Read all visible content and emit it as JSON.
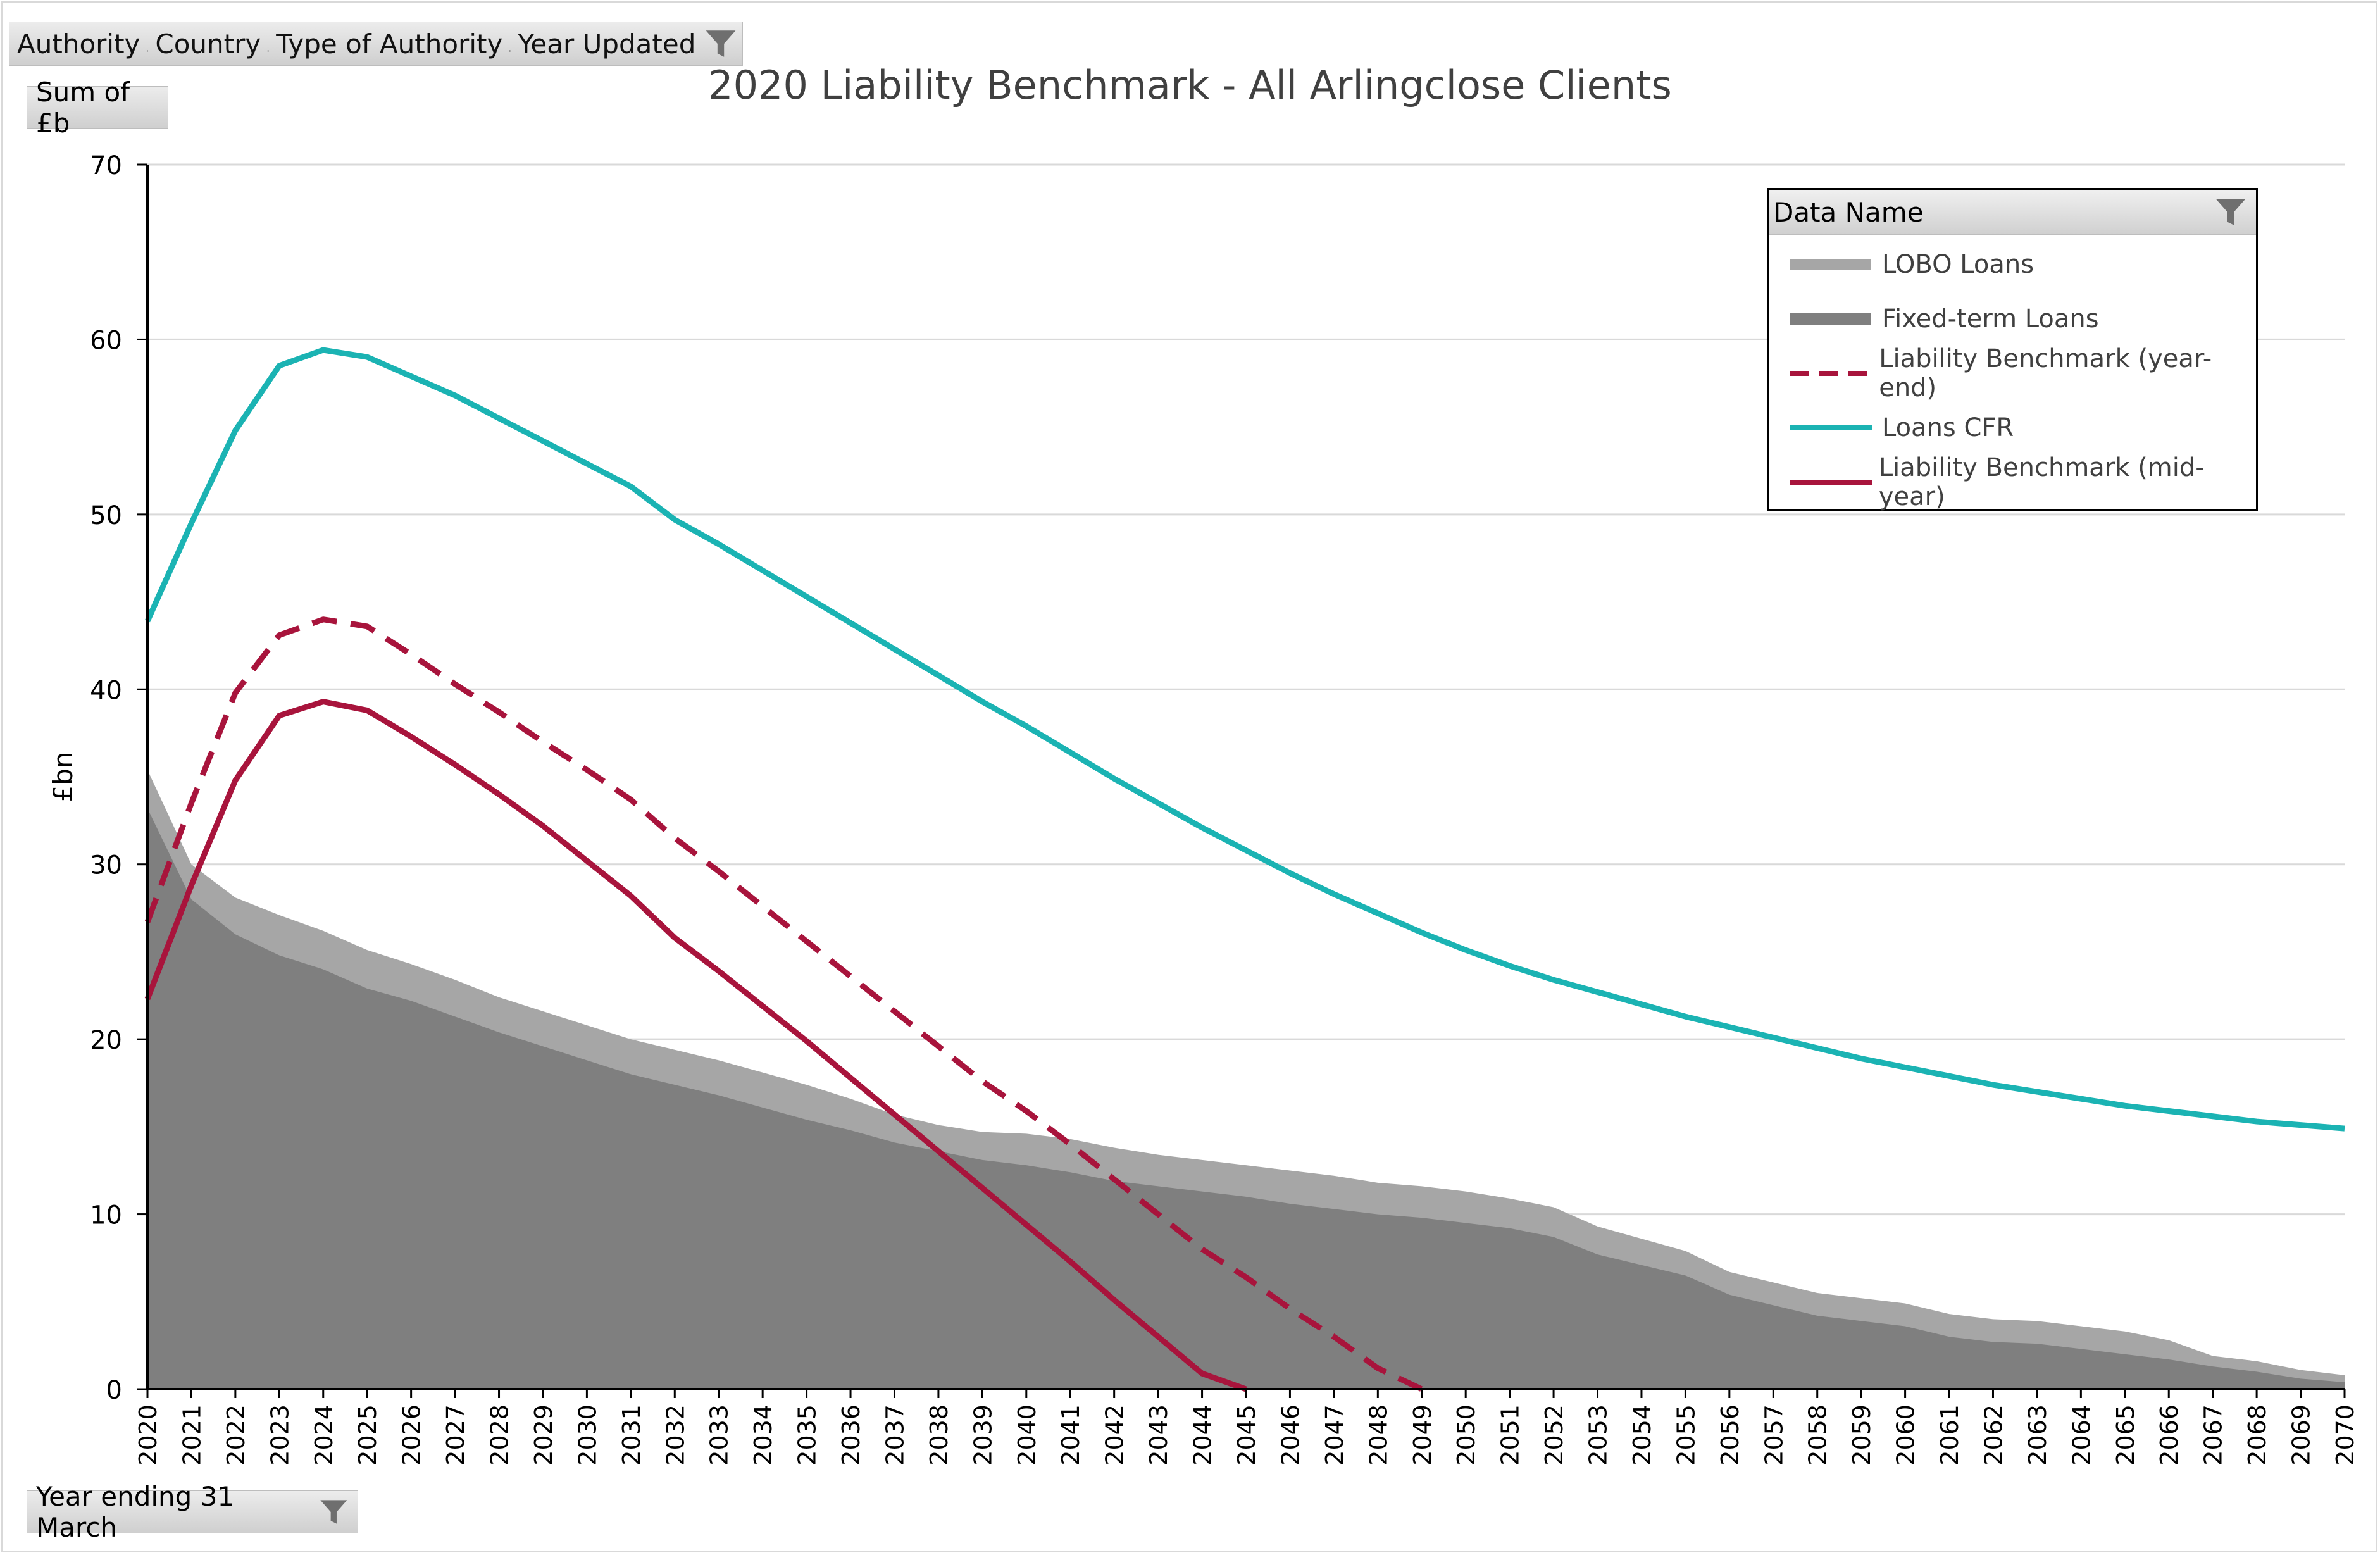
{
  "filters": {
    "items": [
      "Authority",
      "Country",
      "Type of Authority",
      "Year Updated"
    ],
    "sum_field": "Sum of £b",
    "axis_field": "Year ending 31 March",
    "legend_field": "Data Name"
  },
  "colors": {
    "lobo": "#a6a6a6",
    "fixed": "#7f7f7f",
    "cfr": "#1bb3b3",
    "benchmark": "#a8143c",
    "grid": "#d9d9d9"
  },
  "icons": {
    "filter": "funnel-icon"
  },
  "chart_data": {
    "type": "area",
    "title": "2020 Liability Benchmark - All Arlingclose Clients",
    "ylabel": "£bn",
    "xlabel": "",
    "ylim": [
      0,
      70
    ],
    "yticks": [
      0,
      10,
      20,
      30,
      40,
      50,
      60,
      70
    ],
    "grid": true,
    "legend_position": "top-right",
    "x": [
      2020,
      2021,
      2022,
      2023,
      2024,
      2025,
      2026,
      2027,
      2028,
      2029,
      2030,
      2031,
      2032,
      2033,
      2034,
      2035,
      2036,
      2037,
      2038,
      2039,
      2040,
      2041,
      2042,
      2043,
      2044,
      2045,
      2046,
      2047,
      2048,
      2049,
      2050,
      2051,
      2052,
      2053,
      2054,
      2055,
      2056,
      2057,
      2058,
      2059,
      2060,
      2061,
      2062,
      2063,
      2064,
      2065,
      2066,
      2067,
      2068,
      2069,
      2070
    ],
    "series": [
      {
        "name": "LOBO Loans",
        "style": "area-stacked",
        "values": [
          2.2,
          2.0,
          2.1,
          2.3,
          2.2,
          2.2,
          2.1,
          2.1,
          2.0,
          2.0,
          2.0,
          2.0,
          2.0,
          2.0,
          2.0,
          2.0,
          1.8,
          1.6,
          1.5,
          1.6,
          1.8,
          1.9,
          1.9,
          1.8,
          1.8,
          1.8,
          1.9,
          1.9,
          1.8,
          1.8,
          1.8,
          1.7,
          1.7,
          1.6,
          1.5,
          1.4,
          1.3,
          1.3,
          1.3,
          1.3,
          1.3,
          1.3,
          1.3,
          1.3,
          1.3,
          1.3,
          1.1,
          0.6,
          0.6,
          0.5,
          0.4
        ]
      },
      {
        "name": "Fixed-term Loans",
        "style": "area",
        "values": [
          33.2,
          28.0,
          26.0,
          24.8,
          24.0,
          22.9,
          22.2,
          21.3,
          20.4,
          19.6,
          18.8,
          18.0,
          17.4,
          16.8,
          16.1,
          15.4,
          14.8,
          14.1,
          13.6,
          13.1,
          12.8,
          12.4,
          11.9,
          11.6,
          11.3,
          11.0,
          10.6,
          10.3,
          10.0,
          9.8,
          9.5,
          9.2,
          8.7,
          7.7,
          7.1,
          6.5,
          5.4,
          4.8,
          4.2,
          3.9,
          3.6,
          3.0,
          2.7,
          2.6,
          2.3,
          2.0,
          1.7,
          1.3,
          1.0,
          0.6,
          0.4
        ]
      },
      {
        "name": "Liability Benchmark (year-end)",
        "style": "dashed",
        "values": [
          26.7,
          33.5,
          39.8,
          43.1,
          44.0,
          43.6,
          42.0,
          40.3,
          38.7,
          37.0,
          35.4,
          33.7,
          31.5,
          29.6,
          27.6,
          25.6,
          23.6,
          21.6,
          19.6,
          17.6,
          15.9,
          14.0,
          12.0,
          10.0,
          8.0,
          6.4,
          4.6,
          3.0,
          1.2,
          0.0,
          null,
          null,
          null,
          null,
          null,
          null,
          null,
          null,
          null,
          null,
          null,
          null,
          null,
          null,
          null,
          null,
          null,
          null,
          null,
          null,
          null
        ]
      },
      {
        "name": "Loans CFR",
        "style": "line",
        "values": [
          43.9,
          49.5,
          54.8,
          58.5,
          59.4,
          59.0,
          57.9,
          56.8,
          55.5,
          54.2,
          52.9,
          51.6,
          49.7,
          48.3,
          46.8,
          45.3,
          43.8,
          42.3,
          40.8,
          39.3,
          37.9,
          36.4,
          34.9,
          33.5,
          32.1,
          30.8,
          29.5,
          28.3,
          27.2,
          26.1,
          25.1,
          24.2,
          23.4,
          22.7,
          22.0,
          21.3,
          20.7,
          20.1,
          19.5,
          18.9,
          18.4,
          17.9,
          17.4,
          17.0,
          16.6,
          16.2,
          15.9,
          15.6,
          15.3,
          15.1,
          14.9
        ]
      },
      {
        "name": "Liability Benchmark (mid-year)",
        "style": "line",
        "values": [
          22.3,
          28.8,
          34.8,
          38.5,
          39.3,
          38.8,
          37.3,
          35.7,
          34.0,
          32.2,
          30.2,
          28.2,
          25.8,
          23.9,
          21.9,
          19.9,
          17.8,
          15.7,
          13.6,
          11.5,
          9.4,
          7.3,
          5.1,
          3.0,
          0.9,
          0.0,
          null,
          null,
          null,
          null,
          null,
          null,
          null,
          null,
          null,
          null,
          null,
          null,
          null,
          null,
          null,
          null,
          null,
          null,
          null,
          null,
          null,
          null,
          null,
          null,
          null
        ]
      }
    ]
  }
}
